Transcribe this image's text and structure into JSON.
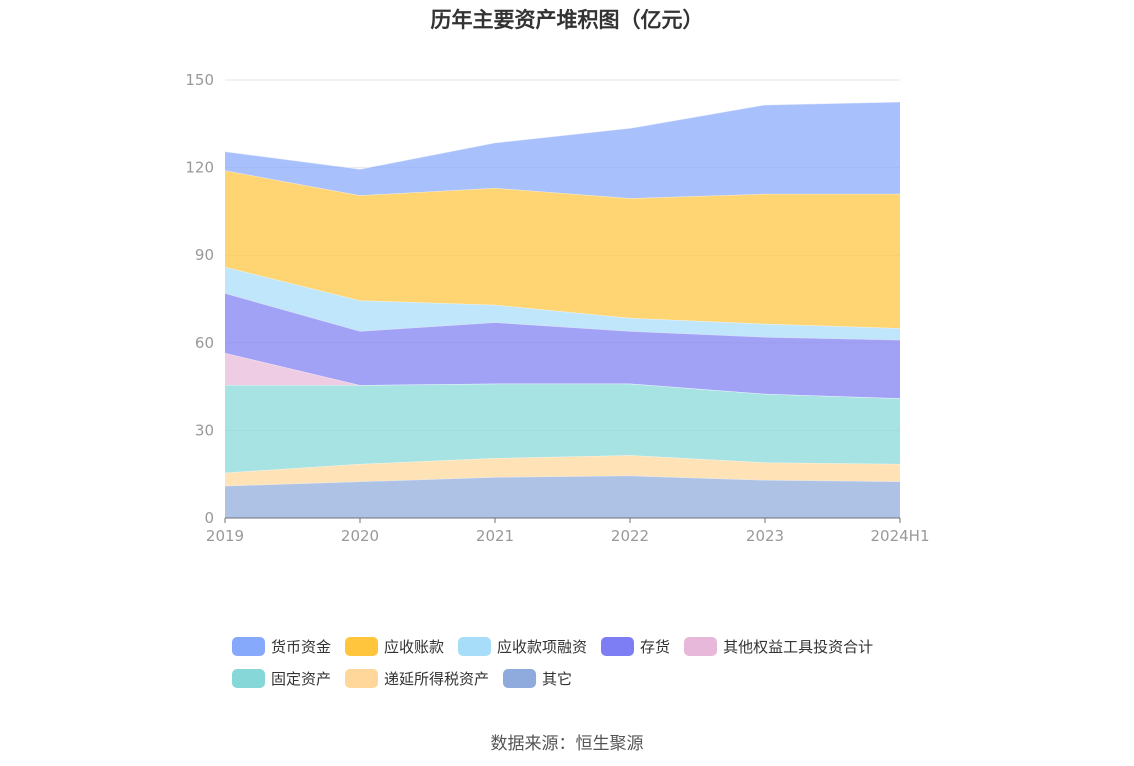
{
  "chart_data": {
    "type": "area",
    "stacked": true,
    "title": "历年主要资产堆积图（亿元）",
    "categories": [
      "2019",
      "2020",
      "2021",
      "2022",
      "2023",
      "2024H1"
    ],
    "yticks": [
      0,
      30,
      60,
      90,
      120,
      150
    ],
    "ylim": [
      0,
      150
    ],
    "series": [
      {
        "name": "其它",
        "color": "#8FAADC",
        "values": [
          11,
          12.5,
          14,
          14.5,
          13,
          12.5
        ]
      },
      {
        "name": "递延所得税资产",
        "color": "#FFD79A",
        "values": [
          4.5,
          6,
          6.5,
          7,
          6,
          6
        ]
      },
      {
        "name": "固定资产",
        "color": "#86D8D8",
        "values": [
          30,
          27,
          25.5,
          24.5,
          23.5,
          22.5
        ]
      },
      {
        "name": "其他权益工具投资合计",
        "color": "#E8B8DA",
        "values": [
          11,
          0,
          0,
          0,
          0,
          0
        ]
      },
      {
        "name": "存货",
        "color": "#7D7EF3",
        "values": [
          20.5,
          18.5,
          21,
          18,
          19.5,
          20
        ]
      },
      {
        "name": "应收款项融资",
        "color": "#A8DDF9",
        "values": [
          9,
          10.5,
          6,
          4.5,
          4.5,
          4
        ]
      },
      {
        "name": "应收账款",
        "color": "#FFC53D",
        "values": [
          33,
          36,
          40,
          41,
          44.5,
          46
        ]
      },
      {
        "name": "货币资金",
        "color": "#86A9FB",
        "values": [
          6.5,
          9,
          15.5,
          24,
          30.5,
          31.5
        ]
      }
    ],
    "legend": {
      "rows": [
        [
          "货币资金",
          "应收账款",
          "应收款项融资",
          "存货",
          "其他权益工具投资合计"
        ],
        [
          "固定资产",
          "递延所得税资产",
          "其它"
        ]
      ]
    },
    "source": "数据来源：恒生聚源"
  }
}
